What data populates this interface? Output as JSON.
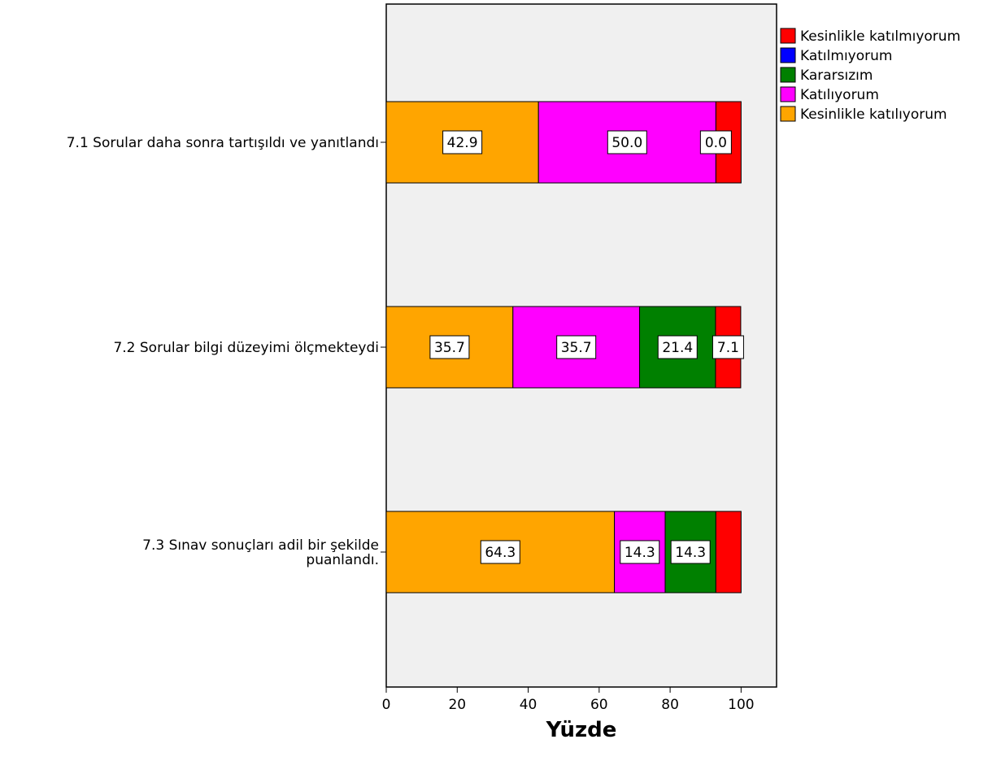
{
  "chart_data": {
    "type": "bar",
    "orientation": "horizontal",
    "stacked": true,
    "categories": [
      [
        "7.1 Sorular daha sonra tartışıldı ve yanıtlandı"
      ],
      [
        "7.2 Sorular bilgi düzeyimi ölçmekteydi"
      ],
      [
        "7.3 Sınav sonuçları adil bir şekilde",
        "puanlandı."
      ]
    ],
    "series": [
      {
        "name": "Kesinlikle katılıyorum",
        "color": "#FFA500",
        "values": [
          42.9,
          35.7,
          64.3
        ],
        "labels": [
          "42.9",
          "35.7",
          "64.3"
        ]
      },
      {
        "name": "Katılıyorum",
        "color": "#FF00FF",
        "values": [
          50.0,
          35.7,
          14.3
        ],
        "labels": [
          "50.0",
          "35.7",
          "14.3"
        ]
      },
      {
        "name": "Kararsızım",
        "color": "#008000",
        "values": [
          0.0,
          21.4,
          14.3
        ],
        "labels": [
          "0.0",
          "21.4",
          "14.3"
        ]
      },
      {
        "name": "Katılmıyorum",
        "color": "#0000FF",
        "values": [
          0,
          0,
          0
        ],
        "labels": [
          "",
          "",
          ""
        ]
      },
      {
        "name": "Kesinlikle katılmıyorum",
        "color": "#FF0000",
        "values": [
          7.1,
          7.1,
          7.1
        ],
        "labels": [
          "",
          "7.1",
          ""
        ]
      }
    ],
    "legend_order": [
      "Kesinlikle katılmıyorum",
      "Katılmıyorum",
      "Kararsızım",
      "Katılıyorum",
      "Kesinlikle katılıyorum"
    ],
    "xlabel": "Yüzde",
    "ylabel": "",
    "xlim": [
      0,
      110
    ],
    "xticks": [
      0,
      20,
      40,
      60,
      80,
      100
    ],
    "grid": false,
    "legend_position": "top-right",
    "plot_background": "#F0F0F0"
  }
}
